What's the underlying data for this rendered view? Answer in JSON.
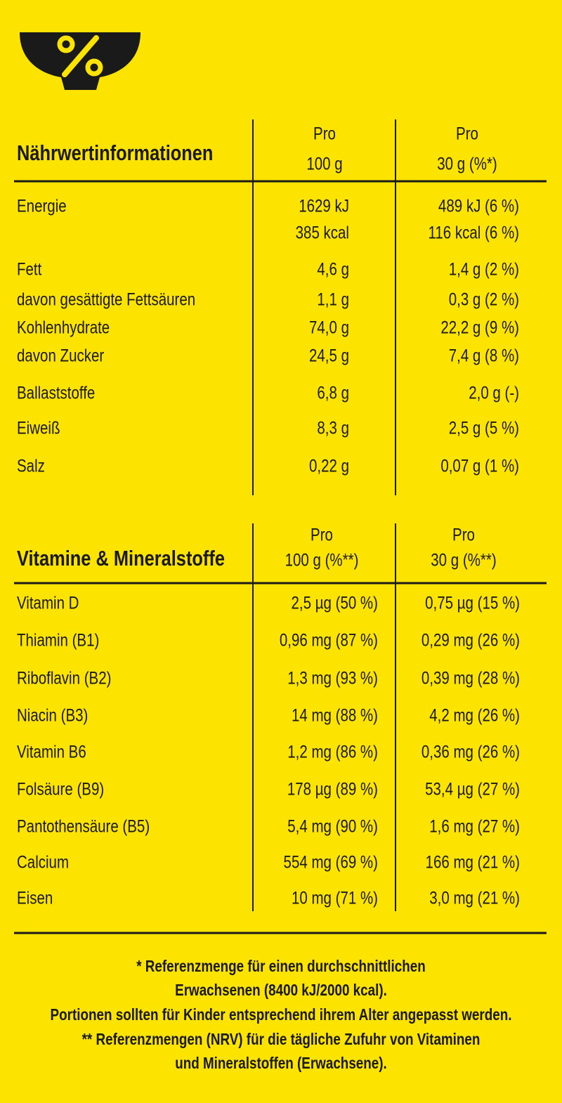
{
  "nutrition": {
    "header": {
      "title": "Nährwertinformationen",
      "col1": [
        "Pro",
        "100 g"
      ],
      "col2": [
        "Pro",
        "30 g (%*)"
      ]
    },
    "rows": [
      {
        "label": "Energie",
        "col1": [
          "1629 kJ",
          "385 kcal"
        ],
        "col2": [
          "489 kJ (6 %)",
          "116 kcal (6 %)"
        ]
      },
      {
        "label": "Fett",
        "col1": [
          "4,6 g"
        ],
        "col2": [
          "1,4 g (2 %)"
        ]
      },
      {
        "label": "davon gesättigte Fettsäuren",
        "col1": [
          "1,1 g"
        ],
        "col2": [
          "0,3 g (2 %)"
        ]
      },
      {
        "label": "Kohlenhydrate",
        "col1": [
          "74,0 g"
        ],
        "col2": [
          "22,2 g (9 %)"
        ]
      },
      {
        "label": "davon Zucker",
        "col1": [
          "24,5 g"
        ],
        "col2": [
          "7,4 g (8 %)"
        ]
      },
      {
        "label": "Ballaststoffe",
        "col1": [
          "6,8 g"
        ],
        "col2": [
          "2,0 g (-)"
        ]
      },
      {
        "label": "Eiweiß",
        "col1": [
          "8,3 g"
        ],
        "col2": [
          "2,5 g (5 %)"
        ]
      },
      {
        "label": "Salz",
        "col1": [
          "0,22 g"
        ],
        "col2": [
          "0,07 g (1 %)"
        ]
      }
    ]
  },
  "vitamins": {
    "header": {
      "title": "Vitamine & Mineralstoffe",
      "col1": [
        "Pro",
        "100 g (%**)"
      ],
      "col2": [
        "Pro",
        "30 g (%**)"
      ]
    },
    "rows": [
      {
        "label": "Vitamin D",
        "col1": [
          "2,5 µg (50 %)"
        ],
        "col2": [
          "0,75 µg (15 %)"
        ]
      },
      {
        "label": "Thiamin (B1)",
        "col1": [
          "0,96 mg (87 %)"
        ],
        "col2": [
          "0,29 mg (26 %)"
        ]
      },
      {
        "label": "Riboflavin (B2)",
        "col1": [
          "1,3 mg (93 %)"
        ],
        "col2": [
          "0,39 mg (28 %)"
        ]
      },
      {
        "label": "Niacin (B3)",
        "col1": [
          "14 mg (88 %)"
        ],
        "col2": [
          "4,2 mg (26 %)"
        ]
      },
      {
        "label": "Vitamin B6",
        "col1": [
          "1,2 mg (86 %)"
        ],
        "col2": [
          "0,36 mg (26 %)"
        ]
      },
      {
        "label": "Folsäure (B9)",
        "col1": [
          "178 µg (89 %)"
        ],
        "col2": [
          "53,4 µg (27 %)"
        ]
      },
      {
        "label": "Pantothensäure (B5)",
        "col1": [
          "5,4 mg (90 %)"
        ],
        "col2": [
          "1,6 mg (27 %)"
        ]
      },
      {
        "label": "Calcium",
        "col1": [
          "554 mg (69 %)"
        ],
        "col2": [
          "166 mg (21 %)"
        ]
      },
      {
        "label": "Eisen",
        "col1": [
          "10 mg (71 %)"
        ],
        "col2": [
          "3,0 mg (21 %)"
        ]
      }
    ]
  },
  "footnotes": [
    "* Referenzmenge für einen durchschnittlichen",
    "Erwachsenen (8400 kJ/2000 kcal).",
    "Portionen sollten für Kinder entsprechend ihrem Alter angepasst werden.",
    "** Referenzmengen (NRV) für die tägliche Zufuhr von Vitaminen",
    "und Mineralstoffen (Erwachsene)."
  ]
}
